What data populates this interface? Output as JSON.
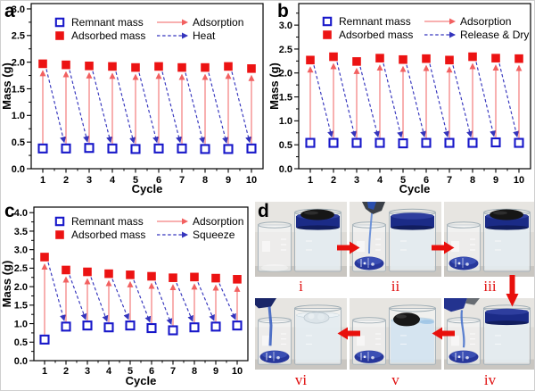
{
  "figure": {
    "panel_letters": {
      "a": "a",
      "b": "b",
      "c": "c",
      "d": "d"
    }
  },
  "colors": {
    "remnant_blue": "#1717c9",
    "adsorbed_red": "#ec1313",
    "adsorption_arrow_red": "#f26060",
    "cycle_arrow_blue": "#3434bd",
    "photo_arrow_red": "#e8100c",
    "photo_label_red": "#e01010",
    "axis_black": "#000000"
  },
  "chart_data": [
    {
      "panel": "a",
      "type": "scatter",
      "xlabel": "Cycle",
      "ylabel": "Mass (g)",
      "x": [
        1,
        2,
        3,
        4,
        5,
        6,
        7,
        8,
        9,
        10
      ],
      "xlim": [
        0.5,
        10.5
      ],
      "ylim": [
        0,
        3.1
      ],
      "ytick_max": 3.0,
      "ytick_step": 0.5,
      "grid": false,
      "legend_position": "top-inside",
      "series": [
        {
          "name": "Remnant mass",
          "marker": "open-square",
          "color": "#1717c9",
          "values": [
            0.38,
            0.38,
            0.39,
            0.38,
            0.37,
            0.38,
            0.38,
            0.37,
            0.37,
            0.38
          ]
        },
        {
          "name": "Adsorbed mass",
          "marker": "filled-square",
          "color": "#ec1313",
          "values": [
            1.97,
            1.95,
            1.93,
            1.92,
            1.9,
            1.92,
            1.9,
            1.9,
            1.92,
            1.88
          ]
        }
      ],
      "process_arrows": [
        {
          "name": "Adsorption",
          "style": "solid",
          "color": "#f26060",
          "direction": "up"
        },
        {
          "name": "Heat",
          "style": "dashed",
          "color": "#3434bd",
          "direction": "down-to-next-cycle"
        }
      ]
    },
    {
      "panel": "b",
      "type": "scatter",
      "xlabel": "Cycle",
      "ylabel": "Mass (g)",
      "x": [
        1,
        2,
        3,
        4,
        5,
        6,
        7,
        8,
        9,
        10
      ],
      "xlim": [
        0.5,
        10.5
      ],
      "ylim": [
        0,
        3.45
      ],
      "ytick_max": 3.0,
      "ytick_step": 0.5,
      "grid": false,
      "legend_position": "top-inside",
      "series": [
        {
          "name": "Remnant mass",
          "marker": "open-square",
          "color": "#1717c9",
          "values": [
            0.54,
            0.54,
            0.54,
            0.54,
            0.53,
            0.54,
            0.54,
            0.54,
            0.55,
            0.54
          ]
        },
        {
          "name": "Adsorbed mass",
          "marker": "filled-square",
          "color": "#ec1313",
          "values": [
            2.27,
            2.34,
            2.24,
            2.31,
            2.28,
            2.3,
            2.27,
            2.34,
            2.31,
            2.3
          ]
        }
      ],
      "process_arrows": [
        {
          "name": "Adsorption",
          "style": "solid",
          "color": "#f26060",
          "direction": "up"
        },
        {
          "name": "Release & Dry",
          "style": "dashed",
          "color": "#3434bd",
          "direction": "down-to-next-cycle"
        }
      ]
    },
    {
      "panel": "c",
      "type": "scatter",
      "xlabel": "Cycle",
      "ylabel": "Mass (g)",
      "x": [
        1,
        2,
        3,
        4,
        5,
        6,
        7,
        8,
        9,
        10
      ],
      "xlim": [
        0.5,
        10.5
      ],
      "ylim": [
        0,
        4.15
      ],
      "ytick_max": 4.0,
      "ytick_step": 0.5,
      "grid": false,
      "legend_position": "top-inside",
      "series": [
        {
          "name": "Remnant mass",
          "marker": "open-square",
          "color": "#1717c9",
          "values": [
            0.57,
            0.92,
            0.95,
            0.9,
            0.95,
            0.88,
            0.82,
            0.9,
            0.92,
            0.95
          ]
        },
        {
          "name": "Adsorbed mass",
          "marker": "filled-square",
          "color": "#ec1313",
          "values": [
            2.8,
            2.45,
            2.4,
            2.35,
            2.32,
            2.28,
            2.24,
            2.26,
            2.23,
            2.2
          ]
        }
      ],
      "process_arrows": [
        {
          "name": "Adsorption",
          "style": "solid",
          "color": "#f26060",
          "direction": "up"
        },
        {
          "name": "Squeeze",
          "style": "dashed",
          "color": "#3434bd",
          "direction": "down-to-next-cycle"
        }
      ]
    }
  ],
  "panel_d": {
    "steps": [
      {
        "label": "i"
      },
      {
        "label": "ii"
      },
      {
        "label": "iii"
      },
      {
        "label": "iv"
      },
      {
        "label": "v"
      },
      {
        "label": "vi"
      }
    ]
  }
}
